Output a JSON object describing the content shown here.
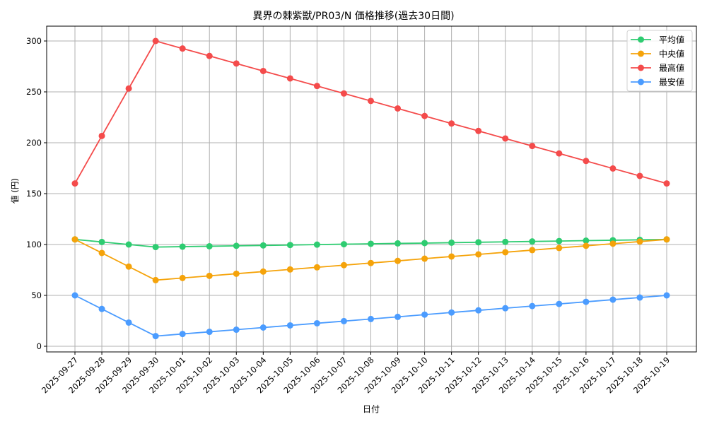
{
  "chart_data": {
    "type": "line",
    "title": "異界の棘紫獣/PR03/N 価格推移(過去30日間)",
    "xlabel": "日付",
    "ylabel": "値 (円)",
    "ylim": [
      -10,
      315
    ],
    "yticks": [
      0,
      50,
      100,
      150,
      200,
      250,
      300
    ],
    "grid": true,
    "legend_position": "upper right",
    "categories": [
      "2025-09-27",
      "2025-09-28",
      "2025-09-29",
      "2025-09-30",
      "2025-10-01",
      "2025-10-02",
      "2025-10-03",
      "2025-10-04",
      "2025-10-05",
      "2025-10-06",
      "2025-10-07",
      "2025-10-08",
      "2025-10-09",
      "2025-10-10",
      "2025-10-11",
      "2025-10-12",
      "2025-10-13",
      "2025-10-14",
      "2025-10-15",
      "2025-10-16",
      "2025-10-17",
      "2025-10-18",
      "2025-10-19"
    ],
    "series": [
      {
        "name": "平均値",
        "color": "#2ecc71",
        "values": [
          105,
          102.5,
          100,
          97.5,
          97.9,
          98.3,
          98.7,
          99.1,
          99.5,
          99.9,
          100.3,
          100.7,
          101.1,
          101.4,
          101.8,
          102.2,
          102.6,
          103.0,
          103.4,
          103.8,
          104.2,
          104.6,
          105
        ]
      },
      {
        "name": "中央値",
        "color": "#f5a30a",
        "values": [
          105,
          91.7,
          78.3,
          65,
          67.1,
          69.2,
          71.3,
          73.4,
          75.5,
          77.6,
          79.7,
          81.8,
          83.9,
          86.1,
          88.2,
          90.3,
          92.4,
          94.5,
          96.6,
          98.7,
          100.8,
          102.9,
          105
        ]
      },
      {
        "name": "最高値",
        "color": "#f44b4b",
        "values": [
          160,
          206.7,
          253.3,
          300,
          292.6,
          285.3,
          277.9,
          270.5,
          263.2,
          255.8,
          248.4,
          241.1,
          233.7,
          226.3,
          218.9,
          211.6,
          204.2,
          196.8,
          189.5,
          182.1,
          174.7,
          167.4,
          160
        ]
      },
      {
        "name": "最安値",
        "color": "#4b9cff",
        "values": [
          50,
          36.7,
          23.3,
          10,
          12.1,
          14.2,
          16.3,
          18.4,
          20.5,
          22.6,
          24.7,
          26.8,
          28.9,
          31.1,
          33.2,
          35.3,
          37.4,
          39.5,
          41.6,
          43.7,
          45.8,
          47.9,
          50
        ]
      }
    ]
  }
}
